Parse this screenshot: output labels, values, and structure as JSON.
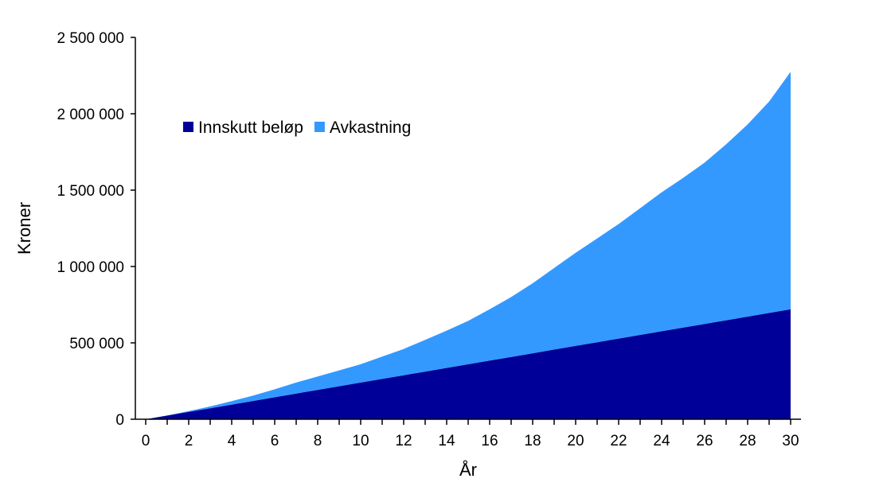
{
  "chart_data": {
    "type": "area",
    "stacked": true,
    "xlabel": "År",
    "ylabel": "Kroner",
    "xlim": [
      0,
      30
    ],
    "ylim": [
      0,
      2500000
    ],
    "x_ticks": [
      0,
      2,
      4,
      6,
      8,
      10,
      12,
      14,
      16,
      18,
      20,
      22,
      24,
      26,
      28,
      30
    ],
    "x_tick_labels": [
      "0",
      "2",
      "4",
      "6",
      "8",
      "10",
      "12",
      "14",
      "16",
      "18",
      "20",
      "22",
      "24",
      "26",
      "28",
      "30"
    ],
    "y_ticks": [
      0,
      500000,
      1000000,
      1500000,
      2000000,
      2500000
    ],
    "y_tick_labels": [
      "0",
      "500 000",
      "1 000 000",
      "1 500 000",
      "2 000 000",
      "2 500 000"
    ],
    "grid": false,
    "legend_position": "top-left",
    "x": [
      0,
      1,
      2,
      3,
      4,
      5,
      6,
      7,
      8,
      9,
      10,
      11,
      12,
      13,
      14,
      15,
      16,
      17,
      18,
      19,
      20,
      21,
      22,
      23,
      24,
      25,
      26,
      27,
      28,
      29,
      30
    ],
    "series": [
      {
        "name": "Innskutt beløp",
        "color": "#000099",
        "values": [
          0,
          24000,
          48000,
          72000,
          96000,
          120000,
          144000,
          168000,
          192000,
          216000,
          240000,
          264000,
          288000,
          312000,
          336000,
          360000,
          384000,
          408000,
          432000,
          456000,
          480000,
          504000,
          528000,
          552000,
          576000,
          600000,
          624000,
          648000,
          672000,
          696000,
          720000
        ]
      },
      {
        "name": "Avkastning",
        "color": "#3399ff",
        "values": [
          0,
          1000,
          5000,
          12000,
          22000,
          35000,
          52000,
          72000,
          88000,
          104000,
          120000,
          146000,
          172000,
          208000,
          244000,
          284000,
          336000,
          392000,
          458000,
          534000,
          610000,
          680000,
          750000,
          830000,
          910000,
          980000,
          1056000,
          1152000,
          1258000,
          1384000,
          1555000
        ]
      }
    ]
  }
}
